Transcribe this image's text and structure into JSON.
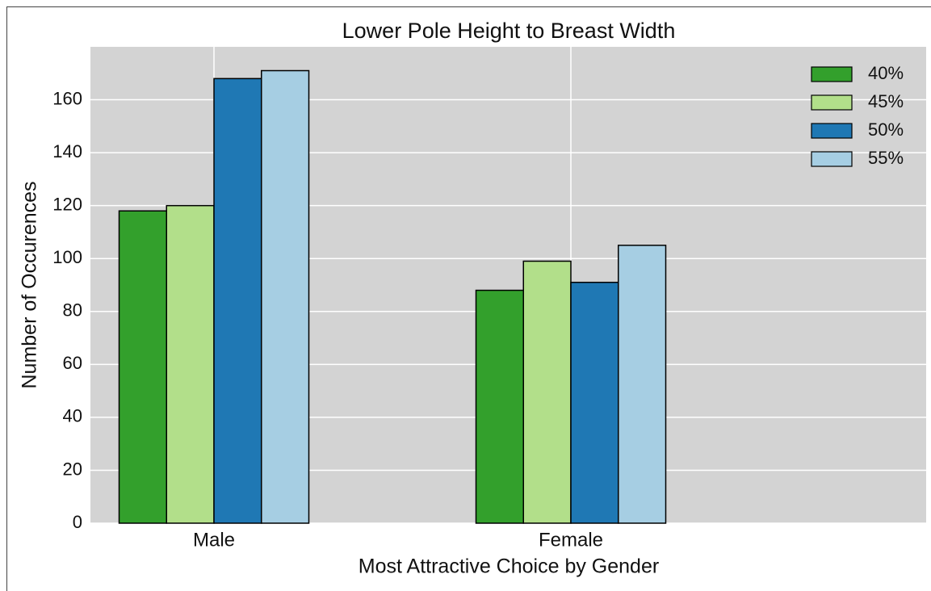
{
  "chart_data": {
    "type": "bar",
    "title": "Lower Pole Height to Breast Width",
    "x_label": "Most Attractive Choice by Gender",
    "y_label": "Number of Occurences",
    "categories": [
      "Male",
      "Female"
    ],
    "series": [
      {
        "name": "40%",
        "color": "#33a02c",
        "values": [
          118,
          88
        ]
      },
      {
        "name": "45%",
        "color": "#b2df8a",
        "values": [
          120,
          99
        ]
      },
      {
        "name": "50%",
        "color": "#1f78b4",
        "values": [
          168,
          91
        ]
      },
      {
        "name": "55%",
        "color": "#a6cee3",
        "values": [
          171,
          105
        ]
      }
    ],
    "ylim": [
      0,
      180
    ],
    "yticks": [
      0,
      20,
      40,
      60,
      80,
      100,
      120,
      140,
      160
    ],
    "grid": true,
    "legend": "upper right",
    "background": "#d3d3d3"
  }
}
